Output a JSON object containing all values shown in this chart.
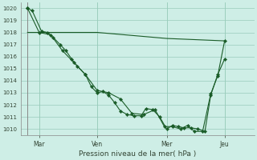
{
  "xlabel": "Pression niveau de la mer( hPa )",
  "bg_color": "#ceeee6",
  "grid_color": "#99ccbb",
  "line_color": "#1a5c28",
  "ylim": [
    1009.5,
    1020.5
  ],
  "xlim": [
    -0.3,
    9.8
  ],
  "xtick_labels": [
    "Mar",
    "Ven",
    "Mer",
    "Jeu"
  ],
  "xtick_positions": [
    0.5,
    3.0,
    6.0,
    8.5
  ],
  "ytick_values": [
    1010,
    1011,
    1012,
    1013,
    1014,
    1015,
    1016,
    1017,
    1018,
    1019,
    1020
  ],
  "line1_x": [
    0.0,
    0.2,
    0.6,
    0.85,
    1.1,
    1.4,
    1.65,
    1.9,
    2.15,
    2.5,
    2.75,
    3.0,
    3.25,
    3.5,
    3.75,
    4.0,
    4.3,
    4.6,
    4.9,
    5.1,
    5.4,
    5.7,
    6.0,
    6.25,
    6.5,
    6.75,
    7.05,
    7.35,
    7.65,
    7.9,
    8.2,
    8.5
  ],
  "line1_y": [
    1020.0,
    1019.8,
    1018.1,
    1018.0,
    1017.6,
    1017.0,
    1016.5,
    1015.8,
    1015.2,
    1014.5,
    1013.5,
    1013.0,
    1013.1,
    1012.8,
    1012.2,
    1011.5,
    1011.2,
    1011.1,
    1011.1,
    1011.7,
    1011.6,
    1011.0,
    1010.0,
    1010.3,
    1010.2,
    1010.1,
    1010.1,
    1010.0,
    1009.8,
    1012.8,
    1014.5,
    1015.8
  ],
  "line2_x": [
    0.0,
    0.5,
    1.0,
    1.5,
    2.0,
    2.5,
    3.0,
    3.5,
    4.0,
    4.5,
    5.0,
    5.5,
    5.9,
    6.25,
    6.6,
    6.9,
    7.2,
    7.55,
    7.9,
    8.2,
    8.5
  ],
  "line2_y": [
    1020.0,
    1018.0,
    1017.8,
    1016.5,
    1015.5,
    1014.5,
    1013.2,
    1013.0,
    1012.5,
    1011.3,
    1011.2,
    1011.6,
    1010.2,
    1010.2,
    1010.0,
    1010.3,
    1009.8,
    1009.8,
    1012.9,
    1014.4,
    1017.3
  ],
  "line3_x": [
    0.0,
    3.0,
    6.0,
    8.5
  ],
  "line3_y": [
    1018.0,
    1018.0,
    1017.5,
    1017.3
  ],
  "marker": "D",
  "marker_size": 2.2
}
